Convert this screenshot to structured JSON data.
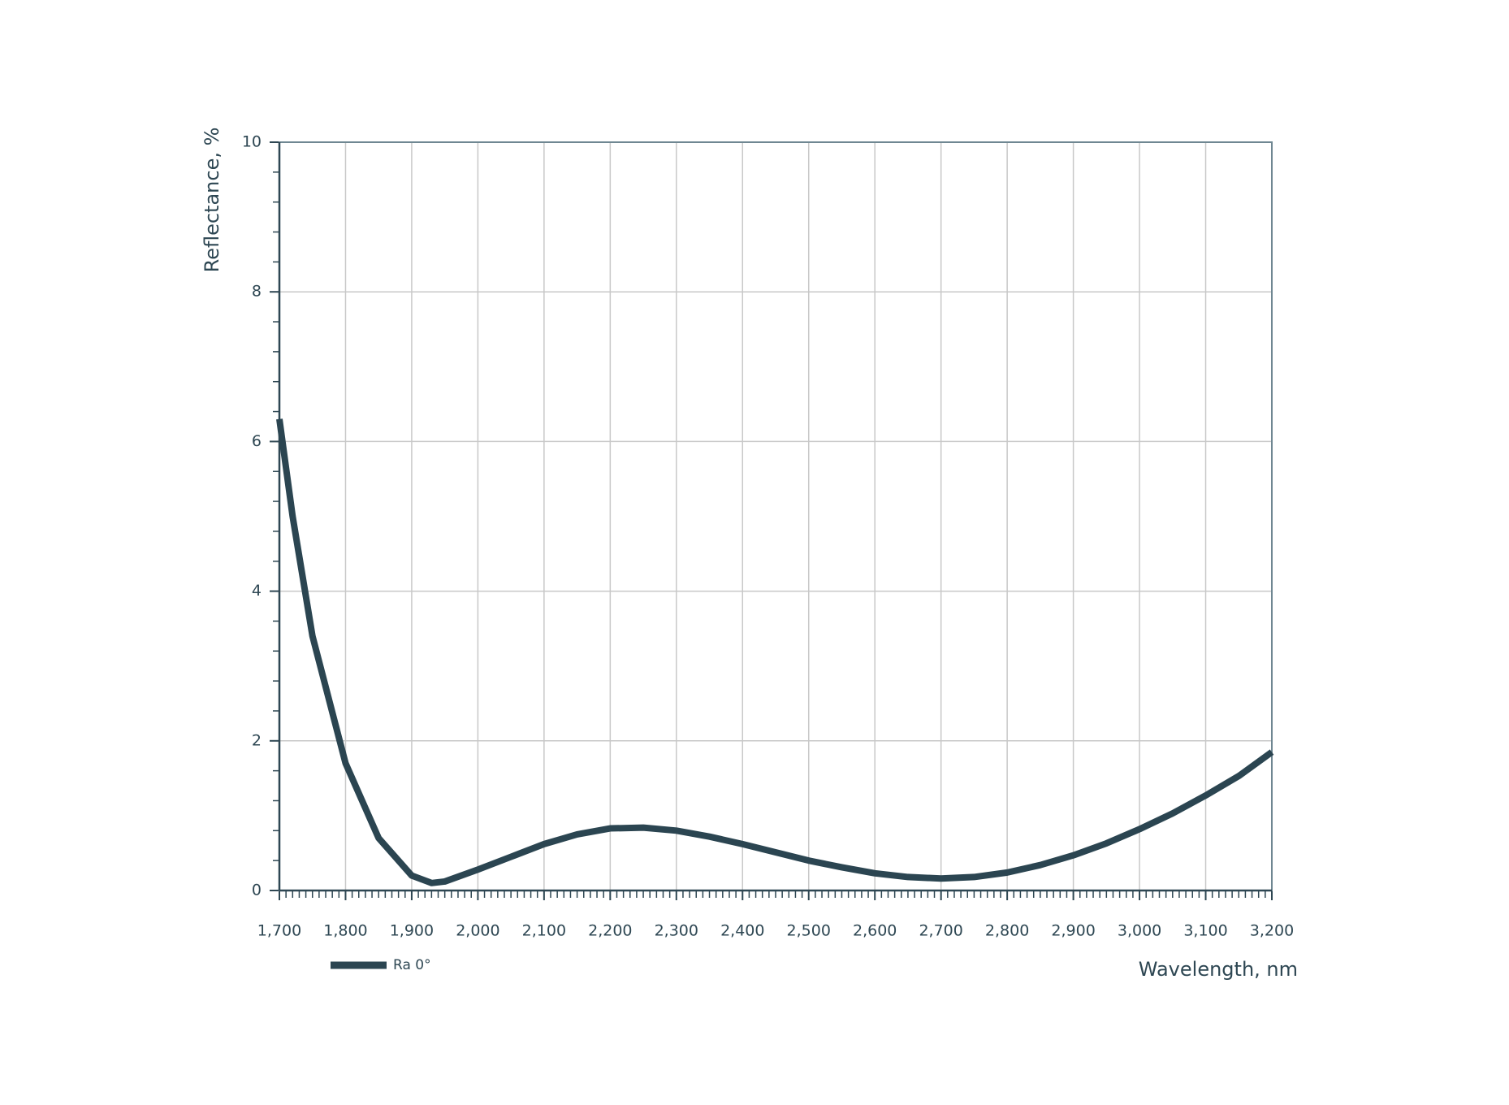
{
  "chart_data": {
    "type": "line",
    "x_label": "Wavelength, nm",
    "y_label": "Reflectance, %",
    "x": [
      1700,
      1720,
      1750,
      1800,
      1850,
      1900,
      1930,
      1950,
      2000,
      2050,
      2100,
      2150,
      2200,
      2250,
      2300,
      2350,
      2400,
      2450,
      2500,
      2550,
      2600,
      2650,
      2700,
      2750,
      2800,
      2850,
      2900,
      2950,
      3000,
      3050,
      3100,
      3150,
      3200
    ],
    "series": [
      {
        "name": "Ra 0°",
        "color": "#2b4551",
        "values": [
          6.3,
          5.0,
          3.4,
          1.7,
          0.7,
          0.2,
          0.1,
          0.12,
          0.28,
          0.45,
          0.62,
          0.75,
          0.83,
          0.84,
          0.8,
          0.72,
          0.62,
          0.51,
          0.4,
          0.31,
          0.23,
          0.18,
          0.16,
          0.18,
          0.24,
          0.34,
          0.47,
          0.63,
          0.82,
          1.03,
          1.27,
          1.53,
          1.85
        ]
      }
    ],
    "xlim": [
      1700,
      3200
    ],
    "ylim": [
      0,
      10
    ],
    "xticks": [
      {
        "value": 1700,
        "label": "1,700"
      },
      {
        "value": 1800,
        "label": "1,800"
      },
      {
        "value": 1900,
        "label": "1,900"
      },
      {
        "value": 2000,
        "label": "2,000"
      },
      {
        "value": 2100,
        "label": "2,100"
      },
      {
        "value": 2200,
        "label": "2,200"
      },
      {
        "value": 2300,
        "label": "2,300"
      },
      {
        "value": 2400,
        "label": "2,400"
      },
      {
        "value": 2500,
        "label": "2,500"
      },
      {
        "value": 2600,
        "label": "2,600"
      },
      {
        "value": 2700,
        "label": "2,700"
      },
      {
        "value": 2800,
        "label": "2,800"
      },
      {
        "value": 2900,
        "label": "2,900"
      },
      {
        "value": 3000,
        "label": "3,000"
      },
      {
        "value": 3100,
        "label": "3,100"
      },
      {
        "value": 3200,
        "label": "3,200"
      }
    ],
    "yticks": [
      0,
      2,
      4,
      6,
      8,
      10
    ],
    "grid": true,
    "legend": "bottom-left"
  }
}
